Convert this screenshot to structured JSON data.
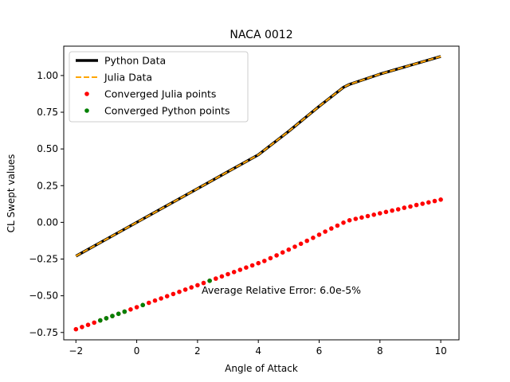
{
  "chart_data": {
    "type": "line",
    "title": "NACA 0012",
    "xlabel": "Angle of Attack",
    "ylabel": "CL Swept values",
    "xlim": [
      -2.4,
      10.6
    ],
    "ylim": [
      -0.8,
      1.2
    ],
    "xticks": [
      -2,
      0,
      2,
      4,
      6,
      8,
      10
    ],
    "yticks": [
      -0.75,
      -0.5,
      -0.25,
      0.0,
      0.25,
      0.5,
      0.75,
      1.0
    ],
    "ytick_labels": [
      "−0.75",
      "−0.50",
      "−0.25",
      "0.00",
      "0.25",
      "0.50",
      "0.75",
      "1.00"
    ],
    "xtick_labels": [
      "−2",
      "0",
      "2",
      "4",
      "6",
      "8",
      "10"
    ],
    "grid": false,
    "legend_position": "top-left",
    "annotation": "Average Relative Error: 6.0e-5%",
    "series": [
      {
        "name": "Python Data",
        "style": "solid-line",
        "color": "#000000",
        "x": [
          -2,
          -1,
          0,
          1,
          2,
          3,
          4,
          5,
          6,
          6.8,
          7,
          8,
          9,
          10
        ],
        "y": [
          -0.23,
          -0.115,
          0.0,
          0.115,
          0.23,
          0.345,
          0.46,
          0.62,
          0.79,
          0.92,
          0.94,
          1.01,
          1.07,
          1.13
        ]
      },
      {
        "name": "Julia Data",
        "style": "dashed-line",
        "color": "#ffa500",
        "x": [
          -2,
          -1,
          0,
          1,
          2,
          3,
          4,
          5,
          6,
          6.8,
          7,
          8,
          9,
          10
        ],
        "y": [
          -0.23,
          -0.115,
          0.0,
          0.115,
          0.23,
          0.345,
          0.46,
          0.62,
          0.79,
          0.92,
          0.94,
          1.01,
          1.07,
          1.13
        ]
      },
      {
        "name": "Converged Julia points",
        "style": "dots",
        "color": "#ff0000",
        "x": [
          -2.0,
          -1.8,
          -1.6,
          -1.4,
          -1.2,
          -1.0,
          -0.8,
          -0.6,
          -0.4,
          -0.2,
          0.0,
          0.2,
          0.4,
          0.6,
          0.8,
          1.0,
          1.2,
          1.4,
          1.6,
          1.8,
          2.0,
          2.2,
          2.4,
          2.6,
          2.8,
          3.0,
          3.2,
          3.4,
          3.6,
          3.8,
          4.0,
          4.2,
          4.4,
          4.6,
          4.8,
          5.0,
          5.2,
          5.4,
          5.6,
          5.8,
          6.0,
          6.2,
          6.4,
          6.6,
          6.8,
          7.0,
          7.2,
          7.4,
          7.6,
          7.8,
          8.0,
          8.2,
          8.4,
          8.6,
          8.8,
          9.0,
          9.2,
          9.4,
          9.6,
          9.8,
          10.0
        ],
        "y": [
          -0.728,
          -0.713,
          -0.698,
          -0.683,
          -0.668,
          -0.653,
          -0.638,
          -0.623,
          -0.608,
          -0.593,
          -0.578,
          -0.563,
          -0.548,
          -0.533,
          -0.518,
          -0.503,
          -0.488,
          -0.473,
          -0.458,
          -0.443,
          -0.428,
          -0.413,
          -0.398,
          -0.383,
          -0.368,
          -0.353,
          -0.338,
          -0.323,
          -0.308,
          -0.293,
          -0.278,
          -0.263,
          -0.244,
          -0.225,
          -0.205,
          -0.186,
          -0.166,
          -0.146,
          -0.126,
          -0.105,
          -0.084,
          -0.063,
          -0.042,
          -0.022,
          -0.002,
          0.014,
          0.024,
          0.033,
          0.043,
          0.052,
          0.062,
          0.071,
          0.08,
          0.089,
          0.099,
          0.108,
          0.118,
          0.127,
          0.136,
          0.145,
          0.155
        ]
      },
      {
        "name": "Converged Python points",
        "style": "dots",
        "color": "#008000",
        "x": [
          -1.2,
          -1.0,
          -0.8,
          -0.6,
          -0.4,
          0.2,
          2.4
        ],
        "y": [
          -0.668,
          -0.653,
          -0.638,
          -0.623,
          -0.608,
          -0.563,
          -0.398
        ]
      }
    ]
  }
}
